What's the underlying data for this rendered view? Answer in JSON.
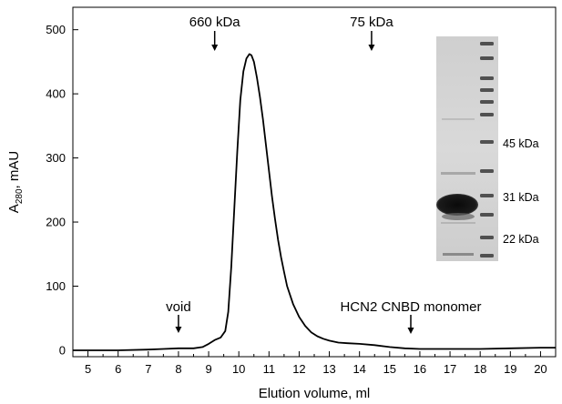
{
  "chart_data": {
    "type": "line",
    "xlabel": "Elution volume, ml",
    "ylabel_main": "A",
    "ylabel_sub": "280",
    "ylabel_rest": ", mAU",
    "xlim": [
      4.5,
      20.5
    ],
    "ylim": [
      -10,
      535
    ],
    "x_ticks": [
      5,
      6,
      7,
      8,
      9,
      10,
      11,
      12,
      13,
      14,
      15,
      16,
      17,
      18,
      19,
      20
    ],
    "y_ticks": [
      0,
      100,
      200,
      300,
      400,
      500
    ],
    "series": [
      {
        "x": [
          4.5,
          6.0,
          7.0,
          7.5,
          8.0,
          8.5,
          8.8,
          9.0,
          9.2,
          9.4,
          9.55,
          9.65,
          9.75,
          9.85,
          9.95,
          10.05,
          10.15,
          10.25,
          10.35,
          10.42,
          10.5,
          10.6,
          10.7,
          10.8,
          10.9,
          11.0,
          11.1,
          11.2,
          11.3,
          11.4,
          11.5,
          11.6,
          11.8,
          12.0,
          12.2,
          12.4,
          12.6,
          12.8,
          13.0,
          13.3,
          13.6,
          14.0,
          14.5,
          15.0,
          15.5,
          16.0,
          17.0,
          18.0,
          19.0,
          20.0,
          20.5
        ],
        "y": [
          0,
          0,
          1,
          2,
          3,
          3,
          5,
          10,
          16,
          20,
          30,
          60,
          130,
          220,
          310,
          390,
          435,
          455,
          462,
          460,
          450,
          425,
          395,
          360,
          320,
          280,
          240,
          205,
          172,
          145,
          122,
          100,
          72,
          52,
          38,
          28,
          22,
          18,
          15,
          12,
          11,
          10,
          8,
          5,
          3,
          2,
          2,
          2,
          3,
          4,
          4
        ]
      }
    ],
    "annotations": [
      {
        "text": "void",
        "x": 8.0
      },
      {
        "text": "660 kDa",
        "x": 9.2
      },
      {
        "text": "75 kDa",
        "x": 14.4
      },
      {
        "text": "HCN2 CNBD monomer",
        "x": 15.7
      }
    ],
    "gel_inset": {
      "marker_labels": [
        "45 kDa",
        "31 kDa",
        "22 kDa"
      ]
    },
    "grid": false
  }
}
